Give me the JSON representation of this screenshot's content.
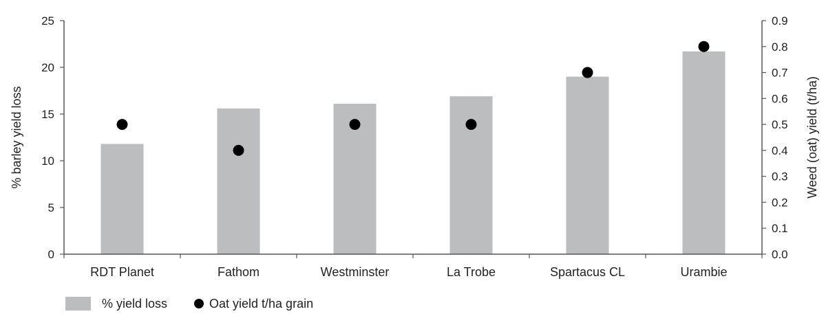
{
  "chart_data": {
    "type": "bar",
    "categories": [
      "RDT Planet",
      "Fathom",
      "Westminster",
      "La Trobe",
      "Spartacus CL",
      "Urambie"
    ],
    "series": [
      {
        "name": "% yield loss",
        "type": "bar",
        "axis": "left",
        "color": "#bcbdbe",
        "values": [
          11.8,
          15.6,
          16.1,
          16.9,
          19.0,
          21.7
        ]
      },
      {
        "name": "Oat yield t/ha grain",
        "type": "scatter",
        "axis": "right",
        "color": "#000000",
        "values": [
          0.5,
          0.4,
          0.5,
          0.5,
          0.7,
          0.8
        ]
      }
    ],
    "ylabel": "% barley yield loss",
    "ylim": [
      0,
      25
    ],
    "yticks": [
      "0",
      "5",
      "10",
      "15",
      "20",
      "25"
    ],
    "y2label": "Weed (oat) yield (t/ha)",
    "y2lim": [
      0,
      0.9
    ],
    "y2ticks": [
      "0.0",
      "0.1",
      "0.2",
      "0.3",
      "0.4",
      "0.5",
      "0.6",
      "0.7",
      "0.8",
      "0.9"
    ],
    "grid": false,
    "legend": "bottom-left"
  }
}
